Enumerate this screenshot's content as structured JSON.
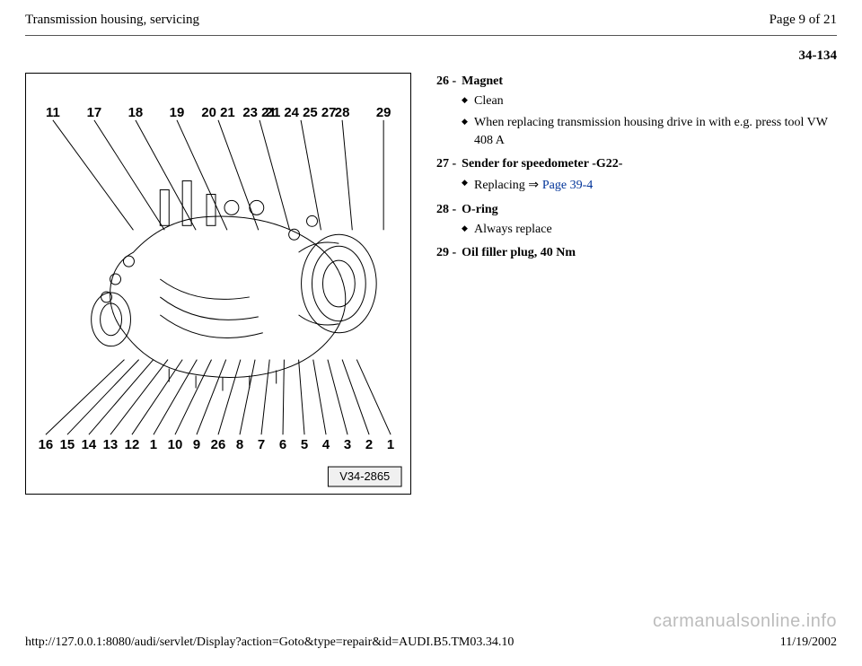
{
  "header": {
    "title": "Transmission housing, servicing",
    "page_indicator": "Page 9 of 21"
  },
  "page_code": "34-134",
  "figure": {
    "top_labels": [
      "11",
      "17",
      "18",
      "19",
      "20 21",
      "23 21",
      "21 24 25 27",
      "28",
      "29"
    ],
    "bottom_labels": [
      "16",
      "15",
      "14",
      "13",
      "12",
      "1",
      "10",
      "9",
      "26",
      "8",
      "7",
      "6",
      "5",
      "4",
      "3",
      "2",
      "1"
    ],
    "caption": "V34-2865"
  },
  "items": [
    {
      "num": "26",
      "title": "Magnet",
      "subs": [
        {
          "text": "Clean"
        },
        {
          "text": "When replacing transmission housing drive in with e.g. press tool VW 408 A"
        }
      ]
    },
    {
      "num": "27",
      "title": "Sender for speedometer -G22-",
      "subs": [
        {
          "text": "Replacing ",
          "arrow": true,
          "link": "Page 39-4"
        }
      ]
    },
    {
      "num": "28",
      "title": "O-ring",
      "subs": [
        {
          "text": "Always replace"
        }
      ]
    },
    {
      "num": "29",
      "title": "Oil filler plug, 40 Nm",
      "subs": []
    }
  ],
  "footer": {
    "url": "http://127.0.0.1:8080/audi/servlet/Display?action=Goto&type=repair&id=AUDI.B5.TM03.34.10",
    "date": "11/19/2002"
  },
  "watermark": "carmanualsonline.info"
}
